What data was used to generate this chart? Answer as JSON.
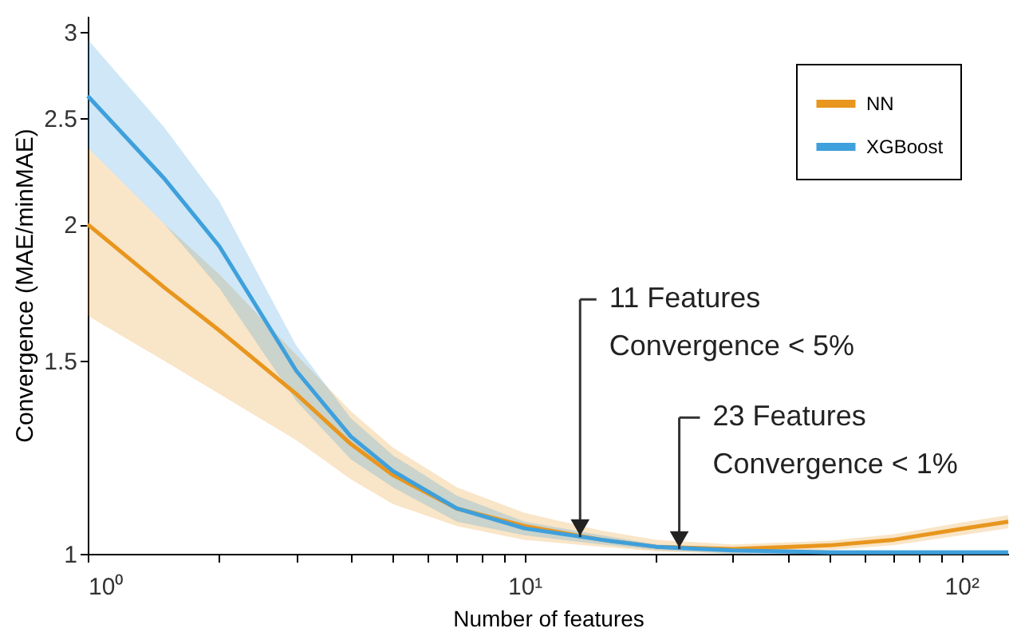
{
  "chart_data": {
    "type": "line",
    "xlabel": "Number of features",
    "ylabel": "Convergence (MAE/minMAE)",
    "x": [
      1,
      1.5,
      2,
      3,
      4,
      5,
      7,
      10,
      15,
      20,
      30,
      50,
      70,
      100,
      128
    ],
    "series": [
      {
        "name": "NN",
        "color": "#e8961e",
        "values": [
          2.0,
          1.75,
          1.6,
          1.4,
          1.26,
          1.18,
          1.1,
          1.06,
          1.03,
          1.015,
          1.01,
          1.018,
          1.03,
          1.054,
          1.07
        ],
        "lower": [
          1.65,
          1.5,
          1.4,
          1.27,
          1.17,
          1.11,
          1.06,
          1.03,
          1.015,
          1.005,
          1.0,
          1.008,
          1.018,
          1.04,
          1.055
        ],
        "upper": [
          2.35,
          2.0,
          1.8,
          1.52,
          1.35,
          1.25,
          1.15,
          1.09,
          1.05,
          1.03,
          1.02,
          1.028,
          1.042,
          1.068,
          1.085
        ]
      },
      {
        "name": "XGBoost",
        "color": "#3ea0dc",
        "values": [
          2.62,
          2.2,
          1.91,
          1.47,
          1.28,
          1.19,
          1.1,
          1.055,
          1.03,
          1.015,
          1.007,
          1.003,
          1.003,
          1.003,
          1.003
        ],
        "lower": [
          2.35,
          2.0,
          1.75,
          1.38,
          1.22,
          1.15,
          1.07,
          1.04,
          1.02,
          1.008,
          1.0,
          1.0,
          1.0,
          1.0,
          1.0
        ],
        "upper": [
          2.95,
          2.45,
          2.1,
          1.55,
          1.33,
          1.23,
          1.13,
          1.07,
          1.04,
          1.02,
          1.012,
          1.008,
          1.008,
          1.008,
          1.008
        ]
      }
    ],
    "log": "xy",
    "xlim": [
      1,
      128
    ],
    "ylim": [
      1,
      3.1
    ],
    "xticks": [
      {
        "value": 1,
        "label": "10⁰"
      },
      {
        "value": 2,
        "label": null
      },
      {
        "value": 3,
        "label": null
      },
      {
        "value": 4,
        "label": null
      },
      {
        "value": 5,
        "label": null
      },
      {
        "value": 6,
        "label": null
      },
      {
        "value": 7,
        "label": null
      },
      {
        "value": 8,
        "label": null
      },
      {
        "value": 9,
        "label": null
      },
      {
        "value": 10,
        "label": "10¹"
      },
      {
        "value": 20,
        "label": null
      },
      {
        "value": 30,
        "label": null
      },
      {
        "value": 40,
        "label": null
      },
      {
        "value": 50,
        "label": null
      },
      {
        "value": 60,
        "label": null
      },
      {
        "value": 70,
        "label": null
      },
      {
        "value": 80,
        "label": null
      },
      {
        "value": 90,
        "label": null
      },
      {
        "value": 100,
        "label": "10²"
      }
    ],
    "yticks": [
      1,
      1.5,
      2,
      2.5,
      3
    ],
    "annotations": [
      {
        "text": "11 Features\nConvergence < 5%",
        "x": 13.4,
        "y": 1.036
      },
      {
        "text": "23 Features\nConvergence < 1%",
        "x": 22.6,
        "y": 1.01
      }
    ],
    "legend": "top right",
    "grid": false,
    "marker": "none",
    "line_style": "solid"
  }
}
